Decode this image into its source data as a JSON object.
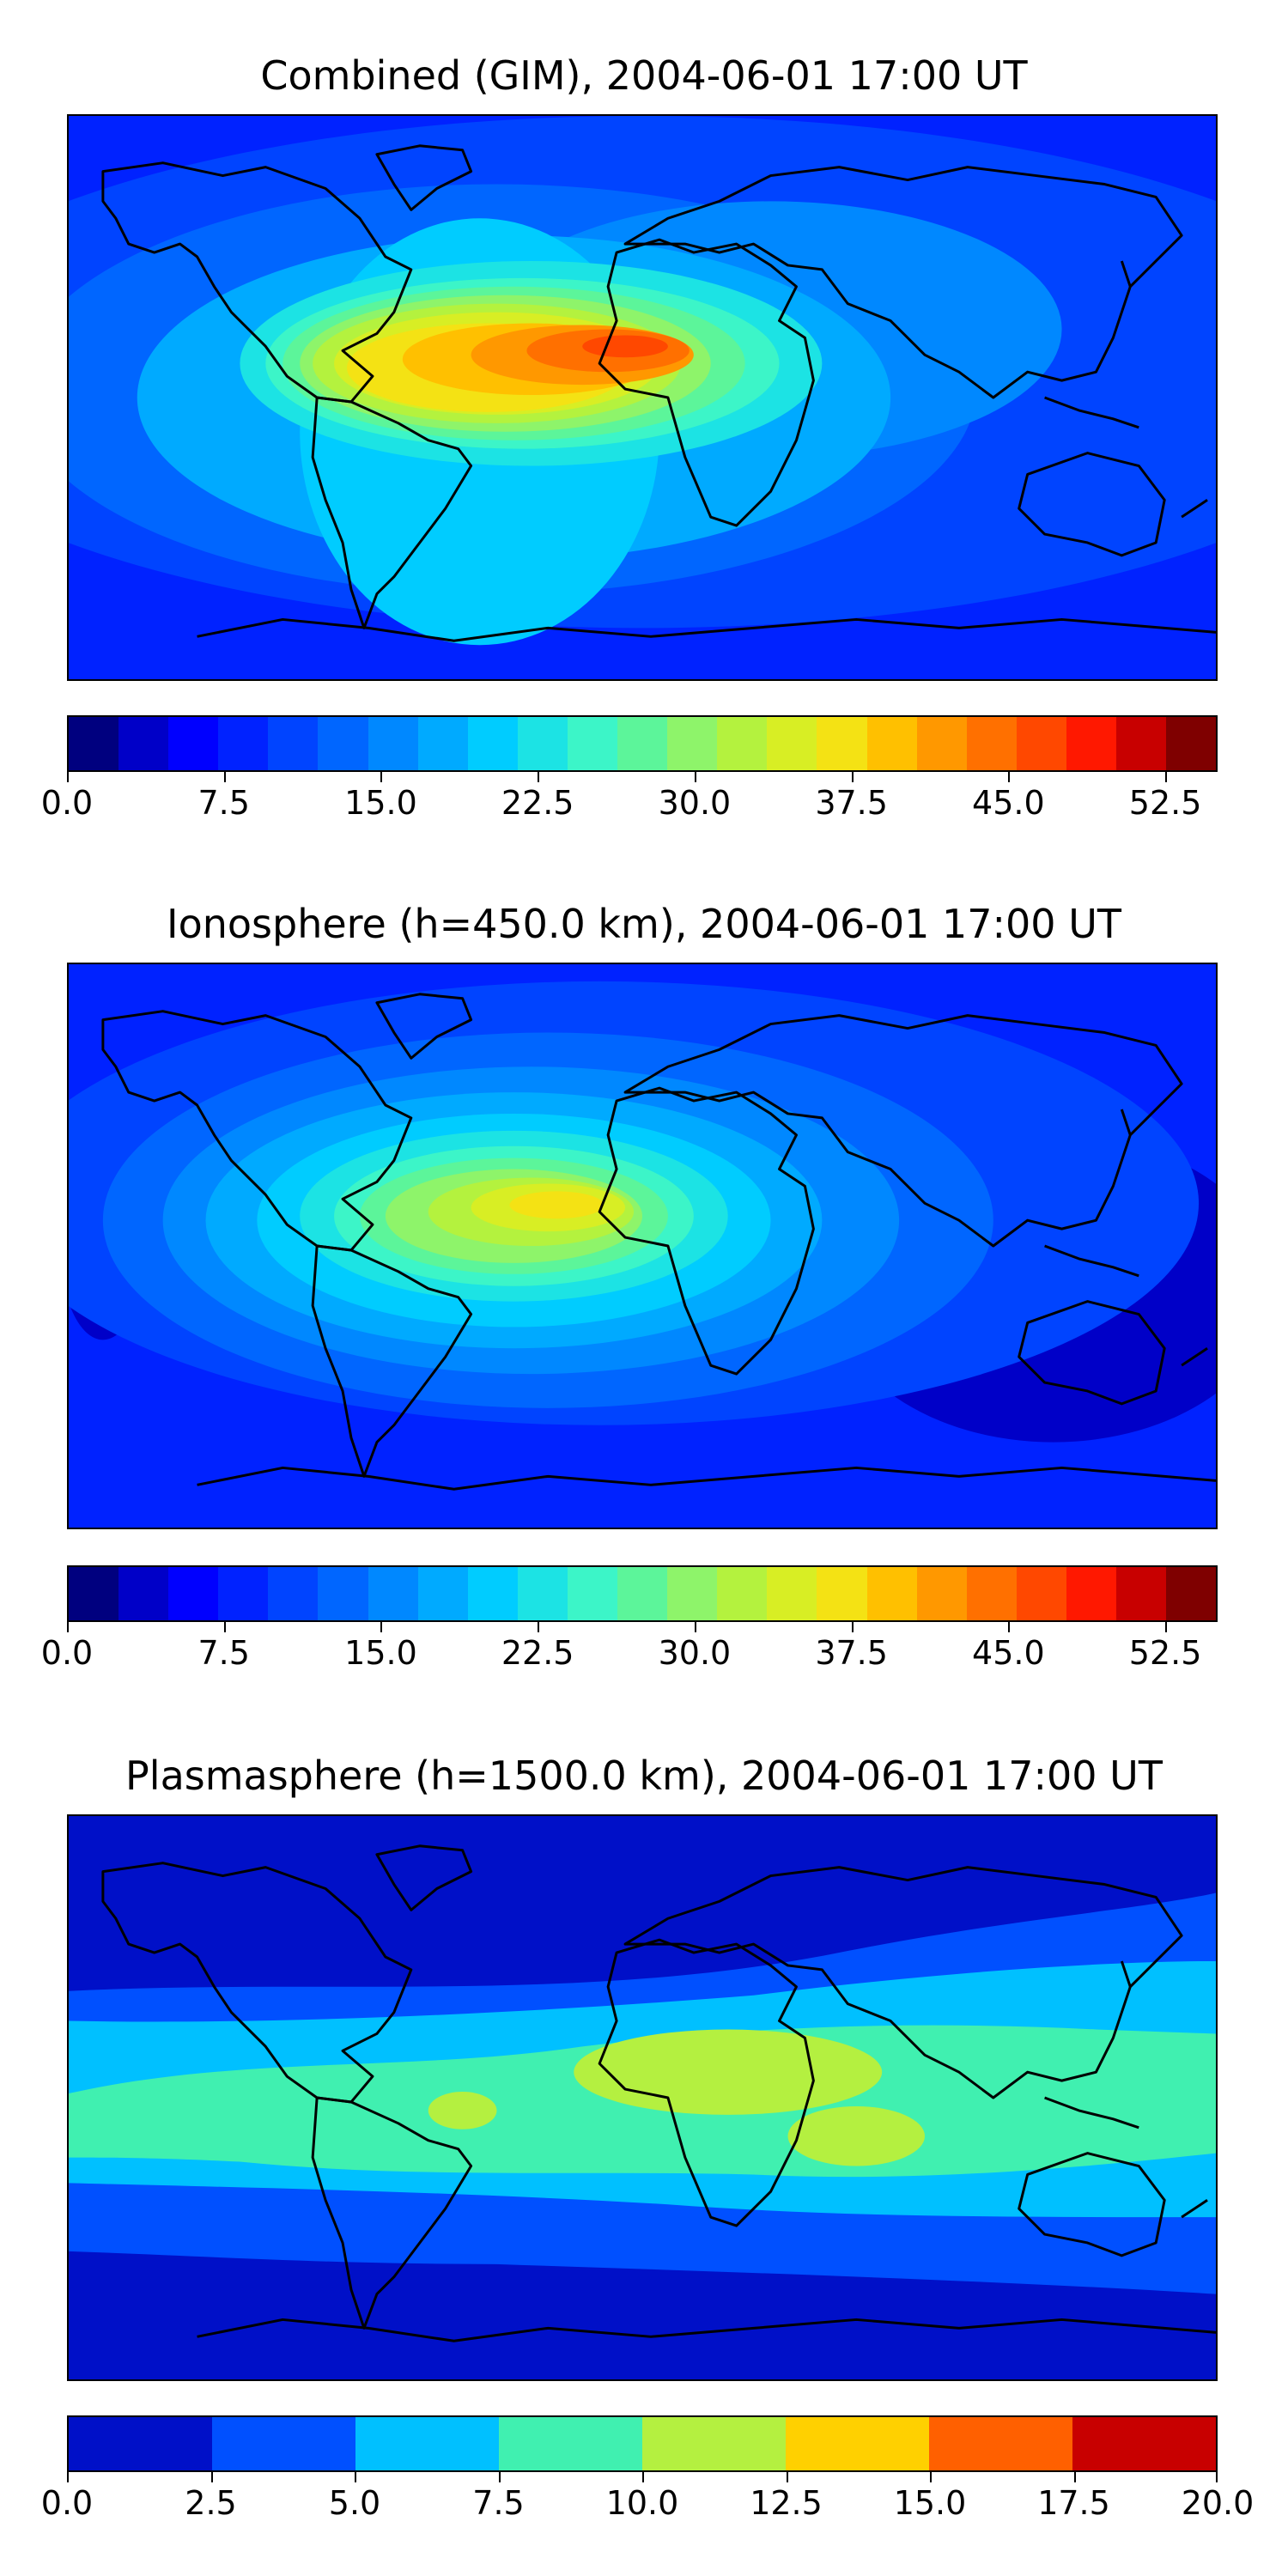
{
  "colorscales": {
    "jet22": [
      "#00007f",
      "#0000c8",
      "#0000ff",
      "#0022ff",
      "#0044ff",
      "#0066ff",
      "#0088ff",
      "#00aaff",
      "#00ccff",
      "#1ce3e4",
      "#3cf5c8",
      "#5cf59a",
      "#8ef46a",
      "#b4f23e",
      "#d8ee24",
      "#f4e214",
      "#ffc000",
      "#ff9800",
      "#ff7000",
      "#ff4800",
      "#ff1800",
      "#c80000",
      "#7f0000"
    ],
    "jet8": [
      "#0010c8",
      "#0050ff",
      "#00c0ff",
      "#40f0b0",
      "#b4f040",
      "#ffd000",
      "#ff6000",
      "#c80000"
    ]
  },
  "panels": [
    {
      "title": "Combined (GIM), 2004-06-01 17:00 UT",
      "scale": "jet22",
      "colorbar": {
        "min": 0,
        "max": 55,
        "tick_labels": [
          "0.0",
          "7.5",
          "15.0",
          "22.5",
          "30.0",
          "37.5",
          "45.0",
          "52.5"
        ],
        "tick_values": [
          0,
          7.5,
          15,
          22.5,
          30,
          37.5,
          45,
          52.5
        ]
      }
    },
    {
      "title": "Ionosphere  (h=450.0 km), 2004-06-01 17:00 UT",
      "scale": "jet22",
      "colorbar": {
        "min": 0,
        "max": 55,
        "tick_labels": [
          "0.0",
          "7.5",
          "15.0",
          "22.5",
          "30.0",
          "37.5",
          "45.0",
          "52.5"
        ],
        "tick_values": [
          0,
          7.5,
          15,
          22.5,
          30,
          37.5,
          45,
          52.5
        ]
      }
    },
    {
      "title": "Plasmasphere (h=1500.0 km), 2004-06-01 17:00 UT",
      "scale": "jet8",
      "colorbar": {
        "min": 0,
        "max": 20,
        "tick_labels": [
          "0.0",
          "2.5",
          "5.0",
          "7.5",
          "10.0",
          "12.5",
          "15.0",
          "17.5",
          "20.0"
        ],
        "tick_values": [
          0,
          2.5,
          5,
          7.5,
          10,
          12.5,
          15,
          17.5,
          20
        ]
      }
    }
  ]
}
